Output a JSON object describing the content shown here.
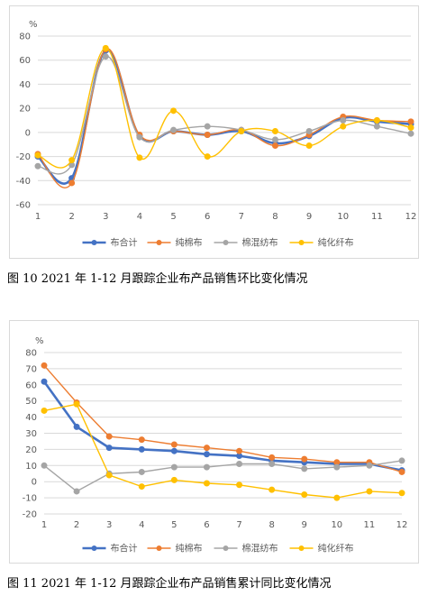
{
  "colors": {
    "布合计": "#4472C4",
    "纯棉布": "#ED7D31",
    "棉混纺布": "#A5A5A5",
    "纯化纤布": "#FFC000",
    "grid": "#d9d9d9",
    "axis": "#bfbfbf"
  },
  "chart_data": [
    {
      "type": "line",
      "title": "",
      "unit": "%",
      "caption": "图 10   2021 年 1-12 月跟踪企业布产品销售环比变化情况",
      "x": [
        1,
        2,
        3,
        4,
        5,
        6,
        7,
        8,
        9,
        10,
        11,
        12
      ],
      "x_tick_labels": [
        "1",
        "2",
        "3",
        "4",
        "5",
        "6",
        "7",
        "8",
        "9",
        "10",
        "11",
        "12"
      ],
      "ylim": [
        -60,
        80
      ],
      "y_ticks": [
        -60,
        -40,
        -20,
        0,
        20,
        40,
        60,
        80
      ],
      "y_tick_labels": [
        "-60",
        "-40",
        "-20",
        "0",
        "20",
        "40",
        "60",
        "80"
      ],
      "smooth": true,
      "grid": true,
      "legend_position": "bottom",
      "series": [
        {
          "name": "布合计",
          "values": [
            -20,
            -38,
            68,
            -3,
            1,
            -2,
            1,
            -9,
            -3,
            12,
            9,
            7
          ]
        },
        {
          "name": "纯棉布",
          "values": [
            -18,
            -42,
            69,
            -2,
            1,
            -2,
            2,
            -11,
            -2,
            13,
            10,
            9
          ]
        },
        {
          "name": "棉混纺布",
          "values": [
            -28,
            -27,
            63,
            -4,
            2,
            5,
            2,
            -6,
            1,
            10,
            5,
            -1
          ]
        },
        {
          "name": "纯化纤布",
          "values": [
            -19,
            -23,
            70,
            -21,
            18,
            -20,
            1,
            1,
            -11,
            5,
            10,
            4
          ]
        }
      ]
    },
    {
      "type": "line",
      "title": "",
      "unit": "%",
      "caption": "图 11   2021 年 1-12 月跟踪企业布产品销售累计同比变化情况",
      "x": [
        1,
        2,
        3,
        4,
        5,
        6,
        7,
        8,
        9,
        10,
        11,
        12
      ],
      "x_tick_labels": [
        "1",
        "2",
        "3",
        "4",
        "5",
        "6",
        "7",
        "8",
        "9",
        "10",
        "11",
        "12"
      ],
      "ylim": [
        -20,
        80
      ],
      "y_ticks": [
        -20,
        -10,
        0,
        10,
        20,
        30,
        40,
        50,
        60,
        70,
        80
      ],
      "y_tick_labels": [
        "-20",
        "-10",
        "0",
        "10",
        "20",
        "30",
        "40",
        "50",
        "60",
        "70",
        "80"
      ],
      "smooth": false,
      "grid": true,
      "legend_position": "bottom",
      "series": [
        {
          "name": "布合计",
          "values": [
            62,
            34,
            21,
            20,
            19,
            17,
            16,
            13,
            12,
            11,
            11,
            7
          ]
        },
        {
          "name": "纯棉布",
          "values": [
            72,
            49,
            28,
            26,
            23,
            21,
            19,
            15,
            14,
            12,
            12,
            6
          ]
        },
        {
          "name": "棉混纺布",
          "values": [
            10,
            -6,
            5,
            6,
            9,
            9,
            11,
            11,
            8,
            9,
            10,
            13
          ]
        },
        {
          "name": "纯化纤布",
          "values": [
            44,
            48,
            4,
            -3,
            1,
            -1,
            -2,
            -5,
            -8,
            -10,
            -6,
            -7
          ]
        }
      ]
    }
  ]
}
